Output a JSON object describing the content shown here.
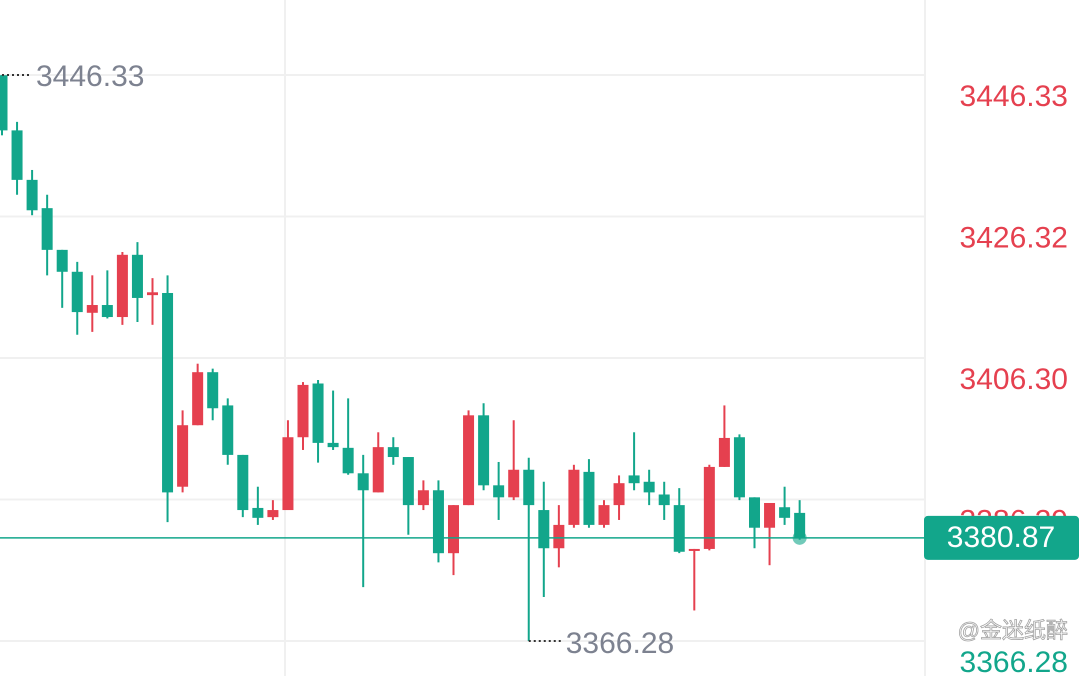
{
  "chart_data": {
    "type": "candlestick",
    "open": [
      3446.3,
      3438.5,
      3431.5,
      3427.5,
      3421.6,
      3418.5,
      3412.7,
      3413.8,
      3412.1,
      3420.9,
      3415.2,
      3415.5,
      3388.1,
      3396.8,
      3404.3,
      3399.6,
      3392.6,
      3385.1,
      3383.8,
      3384.8,
      3395.1,
      3402.7,
      3394.3,
      3393.6,
      3390.0,
      3387.3,
      3393.7,
      3392.3,
      3385.5,
      3387.6,
      3378.7,
      3385.5,
      3398.2,
      3388.3,
      3386.6,
      3390.5,
      3384.8,
      3379.4,
      3382.7,
      3390.2,
      3382.7,
      3385.5,
      3389.7,
      3388.8,
      3387.0,
      3385.5,
      3379.1,
      3379.3,
      3390.9,
      3395.1,
      3386.6,
      3382.3,
      3385.2,
      3384.4
    ],
    "high": [
      3446.33,
      3439.7,
      3432.9,
      3429.4,
      3421.6,
      3419.9,
      3418.0,
      3418.7,
      3421.3,
      3422.7,
      3417.6,
      3418.0,
      3398.9,
      3405.5,
      3404.8,
      3400.6,
      3392.6,
      3388.1,
      3386.2,
      3397.5,
      3402.9,
      3403.2,
      3401.7,
      3400.6,
      3392.6,
      3395.8,
      3395.1,
      3392.3,
      3389.0,
      3389.0,
      3385.5,
      3398.9,
      3399.9,
      3391.6,
      3397.5,
      3392.2,
      3388.8,
      3385.5,
      3391.2,
      3392.0,
      3386.2,
      3389.7,
      3395.8,
      3390.5,
      3388.8,
      3387.9,
      3379.3,
      3391.2,
      3399.6,
      3395.5,
      3386.6,
      3385.8,
      3388.1,
      3386.2
    ],
    "low": [
      3437.8,
      3429.4,
      3426.5,
      3418.0,
      3413.4,
      3409.6,
      3410.0,
      3411.9,
      3411.0,
      3411.4,
      3411.0,
      3383.1,
      3387.3,
      3396.8,
      3397.5,
      3391.2,
      3383.8,
      3382.7,
      3383.4,
      3384.8,
      3393.3,
      3391.5,
      3393.3,
      3389.8,
      3373.9,
      3387.3,
      3391.2,
      3381.3,
      3384.8,
      3377.4,
      3375.6,
      3385.5,
      3387.6,
      3383.4,
      3386.2,
      3366.28,
      3372.5,
      3376.7,
      3382.3,
      3382.3,
      3382.3,
      3383.4,
      3387.6,
      3385.5,
      3383.4,
      3378.7,
      3370.6,
      3379.1,
      3390.9,
      3386.2,
      3379.4,
      3377.0,
      3382.7,
      3380.6
    ],
    "close": [
      3438.5,
      3431.5,
      3427.2,
      3421.6,
      3418.5,
      3412.8,
      3413.8,
      3412.1,
      3420.9,
      3414.8,
      3415.6,
      3387.3,
      3396.8,
      3404.3,
      3399.2,
      3392.6,
      3384.8,
      3383.7,
      3384.8,
      3395.1,
      3402.5,
      3394.3,
      3393.7,
      3390.0,
      3387.6,
      3393.7,
      3392.3,
      3385.5,
      3387.6,
      3378.7,
      3385.5,
      3398.2,
      3388.3,
      3386.6,
      3390.5,
      3385.5,
      3379.4,
      3382.7,
      3390.5,
      3382.7,
      3385.5,
      3388.6,
      3388.6,
      3387.3,
      3385.5,
      3378.9,
      3379.3,
      3390.9,
      3395.0,
      3386.6,
      3382.3,
      3385.8,
      3383.7,
      3380.87
    ],
    "up_color": "#e5404f",
    "down_color": "#12a68b",
    "ylim": [
      3361.33,
      3456.94
    ],
    "yticks": [
      {
        "value": 3446.33,
        "label": "3446.33"
      },
      {
        "value": 3426.32,
        "label": "3426.32"
      },
      {
        "value": 3406.3,
        "label": "3406.30"
      },
      {
        "value": 3386.29,
        "label": "3386.29"
      },
      {
        "value": 3366.28,
        "label": "3366.28"
      }
    ],
    "grid": true,
    "last_price": 3380.87,
    "max_label": "3446.33",
    "min_label": "3366.28",
    "watermark": "@金迷纸醉"
  }
}
